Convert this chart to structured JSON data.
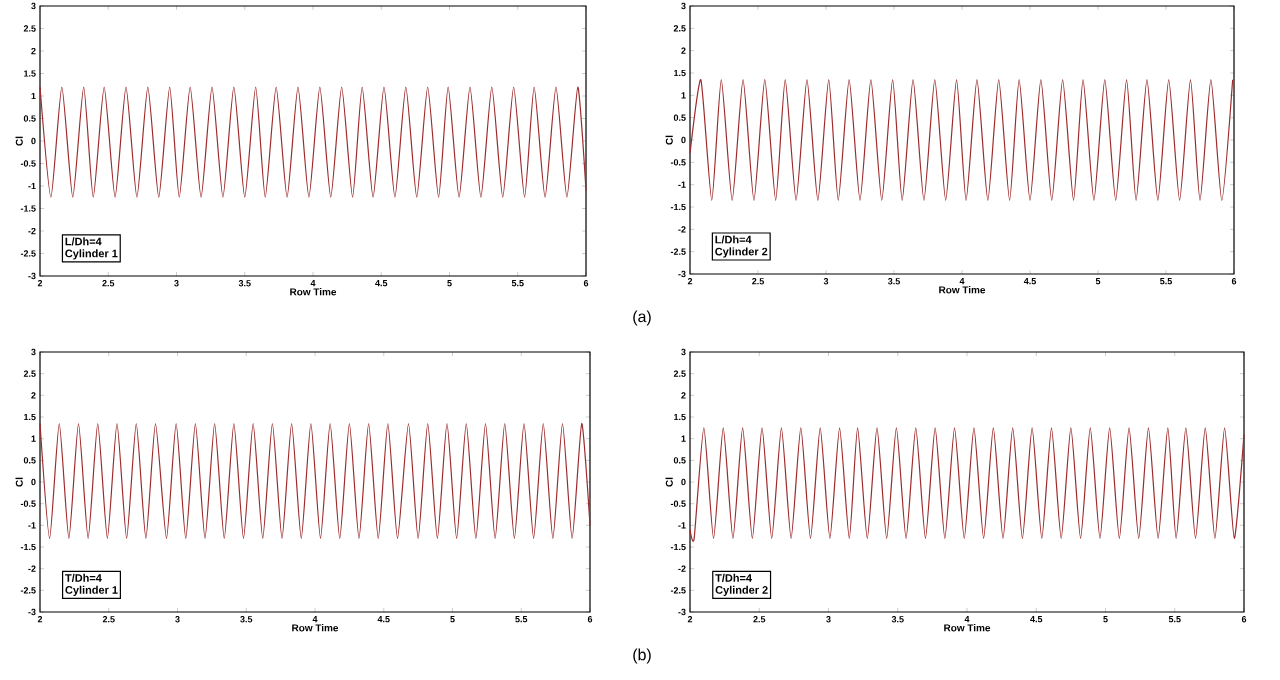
{
  "chart_data": [
    {
      "type": "line",
      "xlabel": "Row Time",
      "ylabel": "Cl",
      "xlim": [
        2,
        6
      ],
      "ylim": [
        -3,
        3
      ],
      "xticks": [
        2,
        2.5,
        3,
        3.5,
        4,
        4.5,
        5,
        5.5,
        6
      ],
      "yticks": [
        -3,
        -2.5,
        -2,
        -1.5,
        -1,
        -0.5,
        0,
        0.5,
        1,
        1.5,
        2,
        2.5,
        3
      ],
      "annotations": [
        "L/Dh=4",
        "Cylinder 1"
      ],
      "series": [
        {
          "color": "#9e2a2b",
          "x": [
            2.0,
            2.08,
            2.16,
            2.24,
            2.32,
            2.39,
            2.47,
            2.55,
            2.63,
            2.71,
            2.79,
            2.87,
            2.95,
            3.02,
            3.1,
            3.18,
            3.26,
            3.34,
            3.42,
            3.5,
            3.58,
            3.65,
            3.73,
            3.81,
            3.89,
            3.97,
            4.05,
            4.13,
            4.21,
            4.29,
            4.36,
            4.44,
            4.52,
            4.6,
            4.68,
            4.76,
            4.84,
            4.92,
            4.99,
            5.07,
            5.15,
            5.23,
            5.31,
            5.39,
            5.47,
            5.55,
            5.62,
            5.7,
            5.78,
            5.86,
            5.94,
            6.0
          ],
          "values": [
            1.2,
            -1.25,
            1.2,
            -1.25,
            1.2,
            -1.25,
            1.2,
            -1.25,
            1.2,
            -1.25,
            1.2,
            -1.25,
            1.2,
            -1.25,
            1.2,
            -1.25,
            1.2,
            -1.25,
            1.2,
            -1.25,
            1.2,
            -1.25,
            1.2,
            -1.25,
            1.2,
            -1.25,
            1.2,
            -1.25,
            1.2,
            -1.25,
            1.2,
            -1.25,
            1.2,
            -1.25,
            1.2,
            -1.25,
            1.2,
            -1.25,
            1.2,
            -1.25,
            1.2,
            -1.25,
            1.2,
            -1.25,
            1.2,
            -1.25,
            1.2,
            -1.25,
            1.2,
            -1.25,
            1.2,
            -1.1
          ]
        }
      ]
    },
    {
      "type": "line",
      "xlabel": "Row Time",
      "ylabel": "Cl",
      "xlim": [
        2,
        6
      ],
      "ylim": [
        -3,
        3
      ],
      "xticks": [
        2,
        2.5,
        3,
        3.5,
        4,
        4.5,
        5,
        5.5,
        6
      ],
      "yticks": [
        -3,
        -2.5,
        -2,
        -1.5,
        -1,
        -0.5,
        0,
        0.5,
        1,
        1.5,
        2,
        2.5,
        3
      ],
      "annotations": [
        "L/Dh=4",
        "Cylinder 2",
        "(a)"
      ],
      "series": [
        {
          "color": "#9e2a2b",
          "x": [
            2.0,
            2.08,
            2.16,
            2.23,
            2.31,
            2.39,
            2.47,
            2.55,
            2.63,
            2.7,
            2.78,
            2.86,
            2.94,
            3.02,
            3.09,
            3.17,
            3.25,
            3.33,
            3.41,
            3.49,
            3.56,
            3.64,
            3.72,
            3.8,
            3.88,
            3.96,
            4.03,
            4.11,
            4.19,
            4.27,
            4.35,
            4.42,
            4.5,
            4.58,
            4.66,
            4.74,
            4.82,
            4.89,
            4.97,
            5.05,
            5.13,
            5.21,
            5.28,
            5.36,
            5.44,
            5.52,
            5.6,
            5.68,
            5.75,
            5.83,
            5.91,
            5.99
          ],
          "values": [
            -0.3,
            1.35,
            -1.35,
            1.35,
            -1.35,
            1.35,
            -1.35,
            1.35,
            -1.35,
            1.35,
            -1.35,
            1.35,
            -1.35,
            1.35,
            -1.35,
            1.35,
            -1.35,
            1.35,
            -1.35,
            1.35,
            -1.35,
            1.35,
            -1.35,
            1.35,
            -1.35,
            1.35,
            -1.35,
            1.35,
            -1.35,
            1.35,
            -1.35,
            1.35,
            -1.35,
            1.35,
            -1.35,
            1.35,
            -1.35,
            1.35,
            -1.35,
            1.35,
            -1.35,
            1.35,
            -1.35,
            1.35,
            -1.35,
            1.35,
            -1.35,
            1.35,
            -1.35,
            1.35,
            -1.35,
            1.35
          ]
        }
      ]
    },
    {
      "type": "line",
      "xlabel": "Row Time",
      "ylabel": "Cl",
      "xlim": [
        2,
        6
      ],
      "ylim": [
        -3,
        3
      ],
      "xticks": [
        2,
        2.5,
        3,
        3.5,
        4,
        4.5,
        5,
        5.5,
        6
      ],
      "yticks": [
        -3,
        -2.5,
        -2,
        -1.5,
        -1,
        -0.5,
        0,
        0.5,
        1,
        1.5,
        2,
        2.5,
        3
      ],
      "annotations": [
        "T/Dh=4",
        "Cylinder 1"
      ],
      "series": [
        {
          "color": "#9e2a2b",
          "x": [
            2.0,
            2.07,
            2.14,
            2.21,
            2.28,
            2.35,
            2.42,
            2.49,
            2.56,
            2.63,
            2.7,
            2.77,
            2.84,
            2.92,
            2.99,
            3.06,
            3.13,
            3.2,
            3.27,
            3.34,
            3.41,
            3.48,
            3.55,
            3.62,
            3.69,
            3.76,
            3.83,
            3.9,
            3.97,
            4.04,
            4.11,
            4.18,
            4.25,
            4.32,
            4.39,
            4.46,
            4.53,
            4.6,
            4.68,
            4.75,
            4.82,
            4.89,
            4.96,
            5.03,
            5.1,
            5.17,
            5.24,
            5.31,
            5.38,
            5.45,
            5.52,
            5.59,
            5.66,
            5.73,
            5.8,
            5.87,
            5.94,
            6.0
          ],
          "values": [
            1.35,
            -1.3,
            1.35,
            -1.3,
            1.35,
            -1.3,
            1.35,
            -1.3,
            1.35,
            -1.3,
            1.35,
            -1.3,
            1.35,
            -1.3,
            1.35,
            -1.3,
            1.35,
            -1.3,
            1.35,
            -1.3,
            1.35,
            -1.3,
            1.35,
            -1.3,
            1.35,
            -1.3,
            1.35,
            -1.3,
            1.35,
            -1.3,
            1.35,
            -1.3,
            1.35,
            -1.3,
            1.35,
            -1.3,
            1.35,
            -1.3,
            1.35,
            -1.3,
            1.35,
            -1.3,
            1.35,
            -1.3,
            1.35,
            -1.3,
            1.35,
            -1.3,
            1.35,
            -1.3,
            1.35,
            -1.3,
            1.35,
            -1.3,
            1.35,
            -1.3,
            1.35,
            -1.0
          ]
        }
      ]
    },
    {
      "type": "line",
      "xlabel": "Row Time",
      "ylabel": "Cl",
      "xlim": [
        2,
        6
      ],
      "ylim": [
        -3,
        3
      ],
      "xticks": [
        2,
        2.5,
        3,
        3.5,
        4,
        4.5,
        5,
        5.5,
        6
      ],
      "yticks": [
        -3,
        -2.5,
        -2,
        -1.5,
        -1,
        -0.5,
        0,
        0.5,
        1,
        1.5,
        2,
        2.5,
        3
      ],
      "annotations": [
        "T/Dh=4",
        "Cylinder 2",
        "(b)"
      ],
      "series": [
        {
          "color": "#9e2a2b",
          "x": [
            2.0,
            2.03,
            2.1,
            2.17,
            2.24,
            2.31,
            2.38,
            2.45,
            2.52,
            2.59,
            2.66,
            2.73,
            2.8,
            2.87,
            2.94,
            3.01,
            3.08,
            3.15,
            3.21,
            3.28,
            3.35,
            3.42,
            3.49,
            3.56,
            3.63,
            3.7,
            3.77,
            3.84,
            3.91,
            3.98,
            4.05,
            4.12,
            4.19,
            4.26,
            4.33,
            4.4,
            4.47,
            4.54,
            4.61,
            4.68,
            4.75,
            4.82,
            4.89,
            4.96,
            5.03,
            5.1,
            5.17,
            5.24,
            5.31,
            5.38,
            5.45,
            5.51,
            5.58,
            5.65,
            5.72,
            5.79,
            5.86,
            5.93,
            6.0
          ],
          "values": [
            -1.1,
            -1.3,
            1.25,
            -1.3,
            1.25,
            -1.3,
            1.25,
            -1.3,
            1.25,
            -1.3,
            1.25,
            -1.3,
            1.25,
            -1.3,
            1.25,
            -1.3,
            1.25,
            -1.3,
            1.25,
            -1.3,
            1.25,
            -1.3,
            1.25,
            -1.3,
            1.25,
            -1.3,
            1.25,
            -1.3,
            1.25,
            -1.3,
            1.25,
            -1.3,
            1.25,
            -1.3,
            1.25,
            -1.3,
            1.25,
            -1.3,
            1.25,
            -1.3,
            1.25,
            -1.3,
            1.25,
            -1.3,
            1.25,
            -1.3,
            1.25,
            -1.3,
            1.25,
            -1.3,
            1.25,
            -1.3,
            1.25,
            -1.3,
            1.25,
            -1.3,
            1.25,
            -1.3,
            1.1
          ]
        }
      ]
    }
  ]
}
